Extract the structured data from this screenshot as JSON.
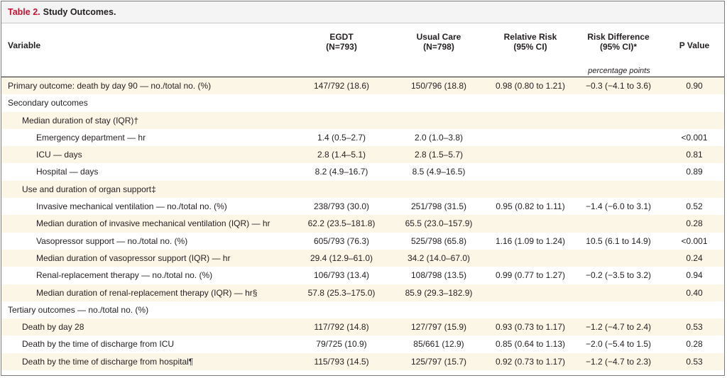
{
  "table": {
    "number": "Table 2.",
    "title": "Study Outcomes.",
    "headers": {
      "variable": "Variable",
      "egdt_line1": "EGDT",
      "egdt_line2": "(N=793)",
      "usual_line1": "Usual Care",
      "usual_line2": "(N=798)",
      "rr_line1": "Relative Risk",
      "rr_line2": "(95% CI)",
      "rd_line1": "Risk Difference",
      "rd_line2": "(95% CI)*",
      "pvalue": "P Value",
      "rd_units": "percentage points"
    },
    "rows": [
      {
        "label": "Primary outcome: death by day 90 — no./total no. (%)",
        "egdt": "147/792 (18.6)",
        "usual": "150/796 (18.8)",
        "rr": "0.98 (0.80 to 1.21)",
        "rd": "−0.3 (−4.1 to 3.6)",
        "p": "0.90"
      },
      {
        "label": "Secondary outcomes",
        "egdt": "",
        "usual": "",
        "rr": "",
        "rd": "",
        "p": ""
      },
      {
        "label": "Median duration of stay (IQR)†",
        "egdt": "",
        "usual": "",
        "rr": "",
        "rd": "",
        "p": ""
      },
      {
        "label": "Emergency department — hr",
        "egdt": "1.4 (0.5–2.7)",
        "usual": "2.0 (1.0–3.8)",
        "rr": "",
        "rd": "",
        "p": "<0.001"
      },
      {
        "label": "ICU — days",
        "egdt": "2.8 (1.4–5.1)",
        "usual": "2.8 (1.5–5.7)",
        "rr": "",
        "rd": "",
        "p": "0.81"
      },
      {
        "label": "Hospital — days",
        "egdt": "8.2 (4.9–16.7)",
        "usual": "8.5 (4.9–16.5)",
        "rr": "",
        "rd": "",
        "p": "0.89"
      },
      {
        "label": "Use and duration of organ support‡",
        "egdt": "",
        "usual": "",
        "rr": "",
        "rd": "",
        "p": ""
      },
      {
        "label": "Invasive mechanical ventilation — no./total no. (%)",
        "egdt": "238/793 (30.0)",
        "usual": "251/798 (31.5)",
        "rr": "0.95 (0.82 to 1.11)",
        "rd": "−1.4 (−6.0 to 3.1)",
        "p": "0.52"
      },
      {
        "label": "Median duration of invasive mechanical ventilation (IQR) — hr",
        "egdt": "62.2 (23.5–181.8)",
        "usual": "65.5 (23.0–157.9)",
        "rr": "",
        "rd": "",
        "p": "0.28"
      },
      {
        "label": "Vasopressor support — no./total no. (%)",
        "egdt": "605/793 (76.3)",
        "usual": "525/798 (65.8)",
        "rr": "1.16 (1.09 to 1.24)",
        "rd": "10.5 (6.1 to 14.9)",
        "p": "<0.001"
      },
      {
        "label": "Median duration of vasopressor support (IQR) — hr",
        "egdt": "29.4 (12.9–61.0)",
        "usual": "34.2 (14.0–67.0)",
        "rr": "",
        "rd": "",
        "p": "0.24"
      },
      {
        "label": "Renal-replacement therapy — no./total no. (%)",
        "egdt": "106/793 (13.4)",
        "usual": "108/798 (13.5)",
        "rr": "0.99 (0.77 to 1.27)",
        "rd": "−0.2 (−3.5 to 3.2)",
        "p": "0.94"
      },
      {
        "label": "Median duration of renal-replacement therapy (IQR) — hr§",
        "egdt": "57.8 (25.3–175.0)",
        "usual": "85.9 (29.3–182.9)",
        "rr": "",
        "rd": "",
        "p": "0.40"
      },
      {
        "label": "Tertiary outcomes — no./total no. (%)",
        "egdt": "",
        "usual": "",
        "rr": "",
        "rd": "",
        "p": ""
      },
      {
        "label": "Death by day 28",
        "egdt": "117/792 (14.8)",
        "usual": "127/797 (15.9)",
        "rr": "0.93 (0.73 to 1.17)",
        "rd": "−1.2 (−4.7 to 2.4)",
        "p": "0.53"
      },
      {
        "label": "Death by the time of discharge from ICU",
        "egdt": "79/725 (10.9)",
        "usual": "85/661 (12.9)",
        "rr": "0.85 (0.64 to 1.13)",
        "rd": "−2.0 (−5.4 to 1.5)",
        "p": "0.28"
      },
      {
        "label": "Death by the time of discharge from hospital¶",
        "egdt": "115/793 (14.5)",
        "usual": "125/797 (15.7)",
        "rr": "0.92 (0.73 to 1.17)",
        "rd": "−1.2 (−4.7 to 2.3)",
        "p": "0.53"
      }
    ]
  },
  "colors": {
    "title_number": "#c8102e",
    "row_shade": "#fbf6e6",
    "title_bar": "#f4f4f4"
  }
}
